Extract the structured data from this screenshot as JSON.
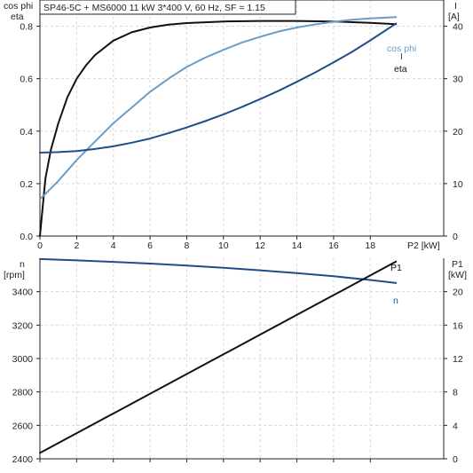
{
  "title": "SP46-5C + MS6000   11 kW   3*400 V, 60 Hz, SF = 1.15",
  "colors": {
    "eta": "#111111",
    "cos_phi": "#6b9cc4",
    "I": "#1f4e86",
    "n": "#1f4e86",
    "P1": "#111111"
  },
  "chart_data": [
    {
      "type": "line",
      "xlabel": "P2 [kW]",
      "ylabel_left": [
        "cos phi",
        "eta"
      ],
      "ylabel_right": [
        "I",
        "[A]"
      ],
      "xlim": [
        0,
        22
      ],
      "ylim_left": [
        0,
        0.9
      ],
      "ylim_right": [
        0,
        45
      ],
      "xticks": [
        0,
        2,
        4,
        6,
        8,
        10,
        12,
        14,
        16,
        18
      ],
      "yticks_left": [
        "0.0",
        "0.2",
        "0.4",
        "0.6",
        "0.8"
      ],
      "yticks_right": [
        "0",
        "10",
        "20",
        "30",
        "40"
      ],
      "grid": true,
      "series": [
        {
          "name": "eta",
          "axis": "left",
          "color": "#111111",
          "x": [
            0,
            0.3,
            0.6,
            1,
            1.5,
            2,
            2.5,
            3,
            4,
            5,
            6,
            7,
            8,
            10,
            12,
            14,
            16,
            18,
            19.4
          ],
          "y": [
            0,
            0.22,
            0.33,
            0.43,
            0.53,
            0.6,
            0.65,
            0.69,
            0.745,
            0.777,
            0.795,
            0.806,
            0.812,
            0.818,
            0.82,
            0.82,
            0.818,
            0.813,
            0.808
          ]
        },
        {
          "name": "cos phi",
          "axis": "left",
          "color": "#6b9cc4",
          "x": [
            0,
            1,
            2,
            3,
            4,
            5,
            6,
            7,
            8,
            9,
            10,
            11,
            12,
            13,
            14,
            15,
            16,
            17,
            18,
            19.4
          ],
          "y": [
            0.14,
            0.21,
            0.29,
            0.36,
            0.43,
            0.49,
            0.55,
            0.6,
            0.645,
            0.68,
            0.71,
            0.738,
            0.76,
            0.78,
            0.795,
            0.807,
            0.817,
            0.825,
            0.83,
            0.835
          ]
        },
        {
          "name": "I",
          "axis": "right",
          "color": "#1f4e86",
          "x": [
            0,
            1,
            2,
            3,
            4,
            5,
            6,
            7,
            8,
            9,
            10,
            11,
            12,
            13,
            14,
            15,
            16,
            17,
            18,
            19.4
          ],
          "y": [
            15.9,
            16.0,
            16.2,
            16.6,
            17.1,
            17.8,
            18.6,
            19.6,
            20.7,
            21.9,
            23.2,
            24.6,
            26.1,
            27.7,
            29.4,
            31.2,
            33.1,
            35.1,
            37.3,
            40.5
          ]
        }
      ]
    },
    {
      "type": "line",
      "xlim": [
        0,
        22
      ],
      "ylabel_left": [
        "n",
        "[rpm]"
      ],
      "ylabel_right": [
        "P1",
        "[kW]"
      ],
      "ylim_left": [
        2400,
        3600
      ],
      "ylim_right": [
        0,
        24
      ],
      "yticks_left": [
        "2400",
        "2600",
        "2800",
        "3000",
        "3200",
        "3400"
      ],
      "yticks_right": [
        "0",
        "4",
        "8",
        "12",
        "16",
        "20"
      ],
      "grid": true,
      "series": [
        {
          "name": "n",
          "axis": "left",
          "color": "#1f4e86",
          "x": [
            0,
            2,
            4,
            6,
            8,
            10,
            12,
            14,
            16,
            18,
            19.4
          ],
          "y": [
            3595,
            3587,
            3578,
            3568,
            3556,
            3543,
            3528,
            3511,
            3492,
            3470,
            3452
          ]
        },
        {
          "name": "P1",
          "axis": "right",
          "color": "#111111",
          "x": [
            0,
            19.4
          ],
          "y": [
            0.7,
            23.6
          ]
        }
      ]
    }
  ]
}
